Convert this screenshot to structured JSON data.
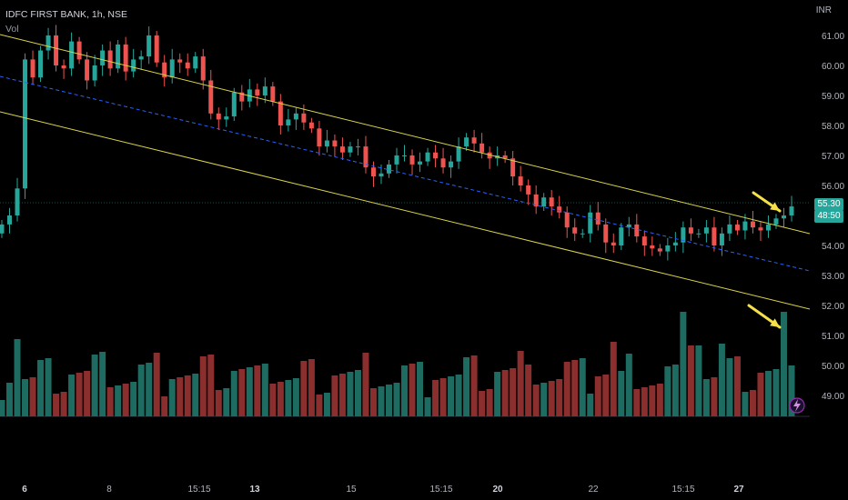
{
  "header": {
    "title": "IDFC FIRST BANK, 1h, NSE",
    "indicator": "Vol"
  },
  "price_axis": {
    "currency": "INR",
    "ticks": [
      "61.00",
      "60.00",
      "59.00",
      "58.00",
      "57.00",
      "56.00",
      "54.00",
      "53.00",
      "52.00",
      "51.00",
      "50.00",
      "49.00"
    ],
    "last_price": "55.30",
    "countdown": "48:50"
  },
  "time_axis": {
    "labels": [
      "6",
      "8",
      "15:15",
      "13",
      "15",
      "15:15",
      "20",
      "22",
      "15:15",
      "27"
    ],
    "bold": [
      true,
      false,
      false,
      true,
      false,
      false,
      true,
      false,
      false,
      true
    ]
  },
  "colors": {
    "up": "#26a69a",
    "down": "#ef5350",
    "vol_up": "#1e6b62",
    "vol_down": "#8a2f2e",
    "channel": "#d9d24a",
    "midline": "#2962ff",
    "arrow": "#f5e04a"
  },
  "chart_data": {
    "type": "candlestick",
    "series": [
      {
        "name": "IDFC FIRST BANK, 1h, NSE",
        "closes": [
          54.7,
          55.0,
          55.9,
          60.2,
          59.6,
          60.5,
          61.0,
          60.0,
          59.9,
          60.8,
          60.2,
          59.5,
          60.0,
          60.5,
          59.9,
          60.7,
          59.8,
          60.2,
          60.3,
          61.0,
          60.1,
          59.6,
          60.2,
          60.1,
          59.9,
          60.3,
          59.5,
          58.4,
          58.2,
          58.3,
          59.1,
          58.8,
          59.2,
          59.0,
          59.3,
          58.8,
          58.0,
          58.2,
          58.4,
          58.1,
          57.9,
          57.3,
          57.5,
          57.3,
          57.1,
          57.3,
          57.3,
          56.6,
          56.3,
          56.4,
          56.7,
          57.0,
          57.0,
          56.7,
          56.8,
          57.1,
          56.9,
          56.6,
          56.8,
          57.3,
          57.6,
          57.4,
          57.1,
          56.9,
          57.0,
          56.9,
          56.3,
          56.0,
          55.7,
          55.3,
          55.6,
          55.3,
          55.1,
          54.6,
          54.4,
          54.4,
          55.1,
          54.7,
          54.1,
          54.0,
          54.6,
          54.7,
          54.3,
          54.0,
          53.9,
          53.8,
          54.0,
          54.1,
          54.6,
          54.4,
          54.4,
          54.6,
          54.0,
          54.4,
          54.7,
          54.5,
          54.8,
          54.6,
          54.5,
          54.7,
          54.9,
          55.0,
          55.3
        ]
      }
    ],
    "volume_bars": 103,
    "annotations": [
      "upper channel line",
      "lower channel line",
      "dashed mid regression line",
      "breakout arrow on price",
      "volume spike arrow"
    ]
  }
}
